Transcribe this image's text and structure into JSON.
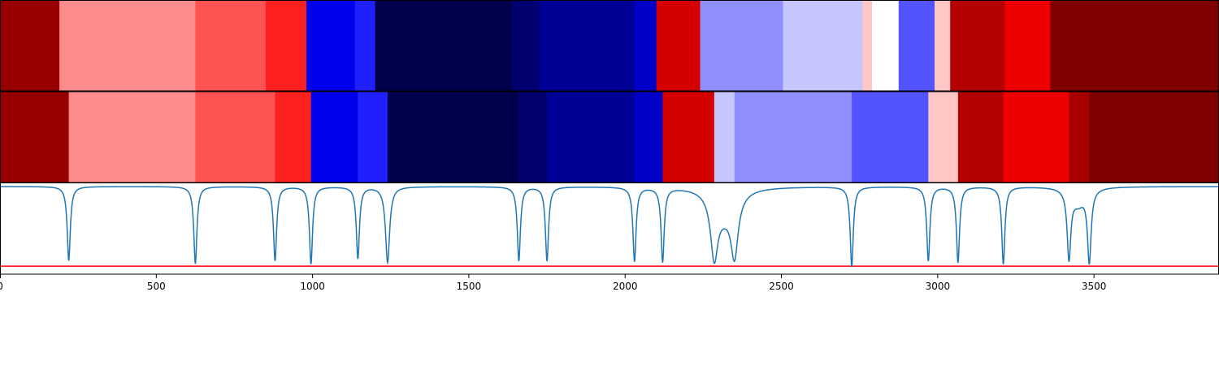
{
  "chart_data": {
    "type": "heatmap",
    "title": "",
    "xlabel": "",
    "ylabel": "",
    "xlim": [
      0,
      3900
    ],
    "x_ticks": [
      0,
      500,
      1000,
      1500,
      2000,
      2500,
      3000,
      3500
    ],
    "x_tick_labels": [
      "0",
      "500",
      "1000",
      "1500",
      "2000",
      "2500",
      "3000",
      "3500"
    ],
    "grid": false,
    "colormap": "seismic",
    "tracks": [
      {
        "segments": [
          {
            "start": 0,
            "end": 190,
            "color": "#980000"
          },
          {
            "start": 190,
            "end": 625,
            "color": "#ff8c8c"
          },
          {
            "start": 625,
            "end": 850,
            "color": "#ff5252"
          },
          {
            "start": 850,
            "end": 980,
            "color": "#ff2020"
          },
          {
            "start": 980,
            "end": 1135,
            "color": "#0000ec"
          },
          {
            "start": 1135,
            "end": 1200,
            "color": "#2020ff"
          },
          {
            "start": 1200,
            "end": 1640,
            "color": "#00004c"
          },
          {
            "start": 1640,
            "end": 1725,
            "color": "#000070"
          },
          {
            "start": 1725,
            "end": 2030,
            "color": "#000096"
          },
          {
            "start": 2030,
            "end": 2100,
            "color": "#0000c8"
          },
          {
            "start": 2100,
            "end": 2240,
            "color": "#d40000"
          },
          {
            "start": 2240,
            "end": 2505,
            "color": "#8e8eff"
          },
          {
            "start": 2505,
            "end": 2760,
            "color": "#c6c6ff"
          },
          {
            "start": 2760,
            "end": 2790,
            "color": "#ffc6c6"
          },
          {
            "start": 2790,
            "end": 2875,
            "color": "#ffffff"
          },
          {
            "start": 2875,
            "end": 2990,
            "color": "#5454ff"
          },
          {
            "start": 2990,
            "end": 3040,
            "color": "#ffc6c6"
          },
          {
            "start": 3040,
            "end": 3215,
            "color": "#b40000"
          },
          {
            "start": 3215,
            "end": 3360,
            "color": "#ee0000"
          },
          {
            "start": 3360,
            "end": 3900,
            "color": "#800000"
          }
        ]
      },
      {
        "segments": [
          {
            "start": 0,
            "end": 220,
            "color": "#980000"
          },
          {
            "start": 220,
            "end": 625,
            "color": "#ff8c8c"
          },
          {
            "start": 625,
            "end": 880,
            "color": "#ff5252"
          },
          {
            "start": 880,
            "end": 995,
            "color": "#ff2020"
          },
          {
            "start": 995,
            "end": 1145,
            "color": "#0000ec"
          },
          {
            "start": 1145,
            "end": 1240,
            "color": "#2020ff"
          },
          {
            "start": 1240,
            "end": 1660,
            "color": "#00004c"
          },
          {
            "start": 1660,
            "end": 1750,
            "color": "#000070"
          },
          {
            "start": 1750,
            "end": 2030,
            "color": "#000096"
          },
          {
            "start": 2030,
            "end": 2120,
            "color": "#0000c8"
          },
          {
            "start": 2120,
            "end": 2285,
            "color": "#d40000"
          },
          {
            "start": 2285,
            "end": 2350,
            "color": "#c6c6ff"
          },
          {
            "start": 2350,
            "end": 2725,
            "color": "#8e8eff"
          },
          {
            "start": 2725,
            "end": 2970,
            "color": "#5454ff"
          },
          {
            "start": 2970,
            "end": 3065,
            "color": "#ffc6c6"
          },
          {
            "start": 3065,
            "end": 3210,
            "color": "#b40000"
          },
          {
            "start": 3210,
            "end": 3420,
            "color": "#ee0000"
          },
          {
            "start": 3420,
            "end": 3485,
            "color": "#a80000"
          },
          {
            "start": 3485,
            "end": 3900,
            "color": "#800000"
          }
        ]
      }
    ],
    "signal": {
      "color": "#1f77b4",
      "baseline": 0,
      "ylim": [
        -1.1,
        0.05
      ],
      "dips": [
        {
          "x": 220,
          "depth": 0.93,
          "width": 6
        },
        {
          "x": 625,
          "depth": 0.97,
          "width": 6
        },
        {
          "x": 880,
          "depth": 0.93,
          "width": 6
        },
        {
          "x": 995,
          "depth": 0.97,
          "width": 6
        },
        {
          "x": 1145,
          "depth": 0.9,
          "width": 6
        },
        {
          "x": 1240,
          "depth": 0.95,
          "width": 8
        },
        {
          "x": 1660,
          "depth": 0.93,
          "width": 6
        },
        {
          "x": 1750,
          "depth": 0.93,
          "width": 6
        },
        {
          "x": 2030,
          "depth": 0.93,
          "width": 6
        },
        {
          "x": 2120,
          "depth": 0.93,
          "width": 6
        },
        {
          "x": 2285,
          "depth": 0.75,
          "width": 14
        },
        {
          "x": 2350,
          "depth": 0.72,
          "width": 14
        },
        {
          "x": 2318,
          "depth": 0.3,
          "width": 40
        },
        {
          "x": 2725,
          "depth": 1.0,
          "width": 6
        },
        {
          "x": 2970,
          "depth": 0.93,
          "width": 6
        },
        {
          "x": 3065,
          "depth": 0.95,
          "width": 6
        },
        {
          "x": 3210,
          "depth": 0.97,
          "width": 6
        },
        {
          "x": 3420,
          "depth": 0.85,
          "width": 7
        },
        {
          "x": 3485,
          "depth": 0.9,
          "width": 7
        },
        {
          "x": 3450,
          "depth": 0.2,
          "width": 25
        }
      ]
    },
    "hline": {
      "color": "#ff0000",
      "y": -1.0
    }
  }
}
